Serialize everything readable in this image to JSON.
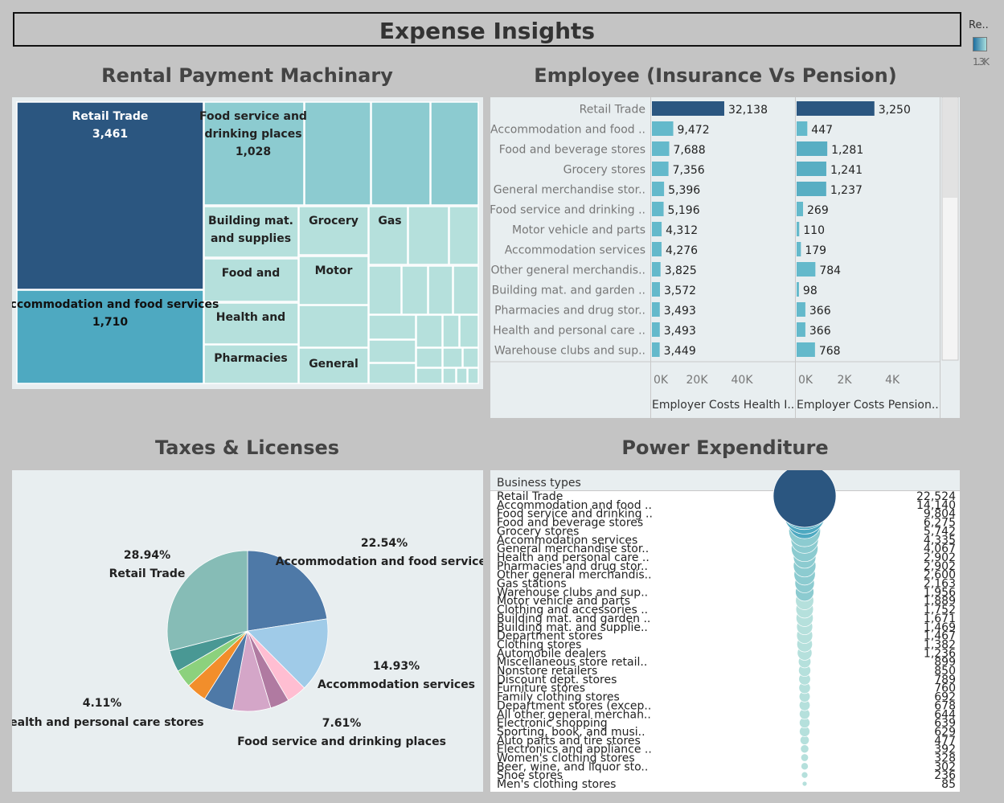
{
  "page_title": "Expense Insights",
  "legend": {
    "label": "Re..",
    "value": "1.3K"
  },
  "colors": {
    "dark": "#2b5680",
    "mid": "#4ea9c1",
    "light": "#8ccbd0",
    "pale": "#b5e0dc",
    "bar": "#64b9cb"
  },
  "chart_data": [
    {
      "type": "treemap",
      "title": "Rental Payment Machinary",
      "items": [
        {
          "label": "Retail Trade",
          "value": "3,461"
        },
        {
          "label": "Food service and drinking places",
          "value": "1,028"
        },
        {
          "label": "Accommodation and food services",
          "value": "1,710"
        },
        {
          "label": "Building mat. and supplies",
          "value": ""
        },
        {
          "label": "Grocery",
          "value": ""
        },
        {
          "label": "Gas",
          "value": ""
        },
        {
          "label": "Food and",
          "value": ""
        },
        {
          "label": "Motor",
          "value": ""
        },
        {
          "label": "Health and",
          "value": ""
        },
        {
          "label": "Pharmacies",
          "value": ""
        },
        {
          "label": "General",
          "value": ""
        }
      ]
    },
    {
      "type": "bar",
      "title": "Employee (Insurance Vs Pension)",
      "categories": [
        "Retail Trade",
        "Accommodation and food ..",
        "Food and beverage stores",
        "Grocery stores",
        "General merchandise stor..",
        "Food service and drinking ..",
        "Motor vehicle and parts",
        "Accommodation services",
        "Other general merchandis..",
        "Building mat. and garden ..",
        "Pharmacies and drug stor..",
        "Health and personal care ..",
        "Warehouse clubs and sup.."
      ],
      "series": [
        {
          "name": "Employer Costs Health I..",
          "values": [
            32138,
            9472,
            7688,
            7356,
            5396,
            5196,
            4312,
            4276,
            3825,
            3572,
            3493,
            3493,
            3449
          ],
          "labels": [
            "32,138",
            "9,472",
            "7,688",
            "7,356",
            "5,396",
            "5,196",
            "4,312",
            "4,276",
            "3,825",
            "3,572",
            "3,493",
            "3,493",
            "3,449"
          ],
          "ticks": [
            "0K",
            "20K",
            "40K"
          ],
          "xmax": 50000
        },
        {
          "name": "Employer Costs Pension..",
          "values": [
            3250,
            447,
            1281,
            1241,
            1237,
            269,
            110,
            179,
            784,
            98,
            366,
            366,
            768
          ],
          "labels": [
            "3,250",
            "447",
            "1,281",
            "1,241",
            "1,237",
            "269",
            "110",
            "179",
            "784",
            "98",
            "366",
            "366",
            "768"
          ],
          "ticks": [
            "0K",
            "2K",
            "4K"
          ],
          "xmax": 4500
        }
      ]
    },
    {
      "type": "pie",
      "title": "Taxes & Licenses",
      "labels": [
        {
          "pct": "22.54%",
          "name": "Accommodation and food services"
        },
        {
          "pct": "14.93%",
          "name": "Accommodation services"
        },
        {
          "pct": "7.61%",
          "name": "Food service and drinking places"
        },
        {
          "pct": "4.11%",
          "name": "Health and personal care stores"
        },
        {
          "pct": "28.94%",
          "name": "Retail Trade"
        }
      ],
      "slices": [
        {
          "value": 22.54,
          "color": "#4e79a7"
        },
        {
          "value": 14.93,
          "color": "#a0cbe8"
        },
        {
          "value": 4.0,
          "color": "#ffbed2"
        },
        {
          "value": 3.8,
          "color": "#b07aa1"
        },
        {
          "value": 7.61,
          "color": "#d4a6c8"
        },
        {
          "value": 6.0,
          "color": "#4e79a7"
        },
        {
          "value": 4.11,
          "color": "#f28e2b"
        },
        {
          "value": 3.6,
          "color": "#8cd17d"
        },
        {
          "value": 4.3,
          "color": "#499894"
        },
        {
          "value": 28.94,
          "color": "#86bcb6"
        }
      ]
    },
    {
      "type": "bubble",
      "title": "Power Expenditure",
      "header": "Business types",
      "categories": [
        "Retail Trade",
        "Accommodation and food ..",
        "Food service and drinking ..",
        "Food and beverage stores",
        "Grocery stores",
        "Accommodation services",
        "General merchandise stor..",
        "Health and personal care ..",
        "Pharmacies and drug stor..",
        "Other general merchandis..",
        "Gas stations",
        "Warehouse clubs and sup..",
        "Motor vehicle and parts",
        "Clothing and accessories ..",
        "Building mat. and garden ..",
        "Building mat. and supplie..",
        "Department stores",
        "Clothing stores",
        "Automobile dealers",
        "Miscellaneous store retail..",
        "Nonstore retailers",
        "Discount dept. stores",
        "Furniture stores",
        "Family clothing stores",
        "Department stores (excep..",
        "All other general merchan..",
        "Electronic shopping",
        "Sporting, book, and musi..",
        "Auto parts and tire stores",
        "Electronics and appliance ..",
        "Women's clothing stores",
        "Beer, wine, and liquor sto..",
        "Shoe stores",
        "Men's clothing stores"
      ],
      "values": [
        22524,
        14140,
        9804,
        6275,
        5742,
        4335,
        4067,
        2902,
        2902,
        2600,
        2163,
        1956,
        1889,
        1752,
        1671,
        1469,
        1467,
        1382,
        1236,
        899,
        850,
        789,
        760,
        692,
        678,
        644,
        639,
        629,
        477,
        392,
        328,
        302,
        236,
        85
      ],
      "labels": [
        "22,524",
        "14,140",
        "9,804",
        "6,275",
        "5,742",
        "4,335",
        "4,067",
        "2,902",
        "2,902",
        "2,600",
        "2,163",
        "1,956",
        "1,889",
        "1,752",
        "1,671",
        "1,469",
        "1,467",
        "1,382",
        "1,236",
        "899",
        "850",
        "789",
        "760",
        "692",
        "678",
        "644",
        "639",
        "629",
        "477",
        "392",
        "328",
        "302",
        "236",
        "85"
      ]
    }
  ]
}
